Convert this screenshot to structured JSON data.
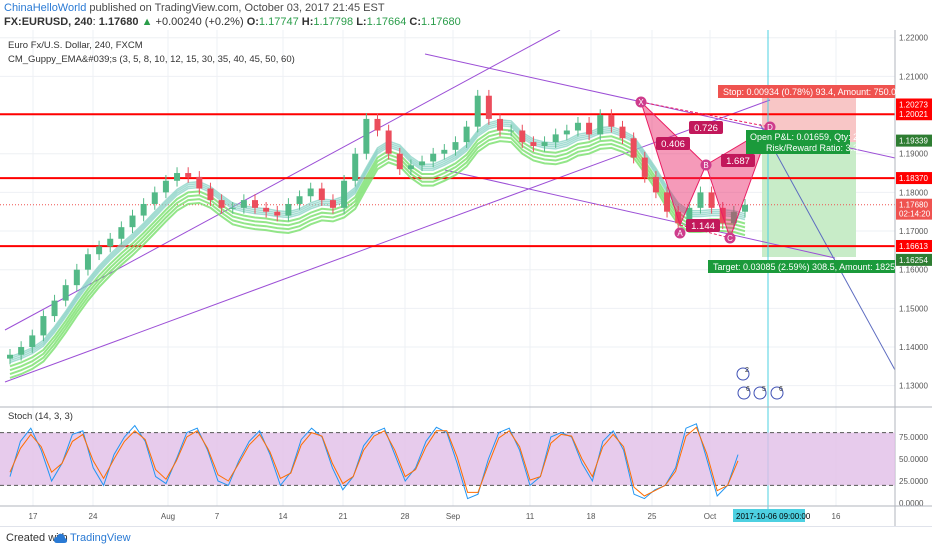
{
  "header": {
    "author": "ChinaHelloWorld",
    "published": "published on TradingView.com, October 03, 2017 21:45 EST",
    "symbol": "FX:EURUSD, 240",
    "last": "1.17680",
    "change": "+0.00240 (+0.2%)",
    "open_label": "O:",
    "open": "1.17747",
    "high_label": "H:",
    "high": "1.17798",
    "low_label": "L:",
    "low": "1.17664",
    "close_label": "C:",
    "close": "1.17680"
  },
  "legend": {
    "main": "Euro Fx/U.S. Dollar, 240, FXCM",
    "indicator": "CM_Guppy_EMA&#039;s (3, 5, 8, 10, 12, 15, 30, 35, 40, 45, 50, 60)",
    "stoch": "Stoch (14, 3, 3)"
  },
  "colors": {
    "up_candle": "#53b987",
    "down_candle": "#eb4d5c",
    "level_line": "#ff0000",
    "channel": "#9c4fd6",
    "ema_fast": "#3fbf8f",
    "ema_slow": "#78e06b",
    "pattern": "#e91e63",
    "stoch_bg": "#e1bee7",
    "stop_zone": "#f8c6c6",
    "target_zone": "#c8ecc8"
  },
  "position": {
    "stop": "Stop: 0.00934 (0.78%) 93.4, Amount: 750.0",
    "open_pl": "Open P&L: 0.01659, Qty: 26766",
    "rr": "Risk/Reward Ratio: 3.3",
    "target": "Target: 0.03085 (2.59%) 308.5, Amount: 1825"
  },
  "pattern": {
    "points": [
      "X",
      "A",
      "B",
      "C",
      "D"
    ],
    "ratios": [
      "0.726",
      "0.406",
      "1.687",
      "1.144"
    ]
  },
  "events": [
    "2",
    "6",
    "5",
    "6"
  ],
  "crosshair_time": "2017-10-06 09:00:00",
  "footer": {
    "created": "Created with",
    "brand": "TradingView"
  },
  "chart_data": [
    {
      "type": "candlestick",
      "title": "Euro Fx/U.S. Dollar, 240, FXCM",
      "ylim": [
        1.125,
        1.222
      ],
      "price_axis_ticks": [
        "1.22000",
        "1.21000",
        "1.20000",
        "1.19000",
        "1.18000",
        "1.17000",
        "1.16000",
        "1.15000",
        "1.14000",
        "1.13000"
      ],
      "price_labels": [
        {
          "text": "1.20273",
          "price": 1.20273,
          "color": "#ff0000"
        },
        {
          "text": "1.20021",
          "price": 1.20021,
          "color": "#ff0000"
        },
        {
          "text": "1.19339",
          "price": 1.19339,
          "color": "#2e7d32"
        },
        {
          "text": "1.18370",
          "price": 1.1837,
          "color": "#ff0000"
        },
        {
          "text": "1.17680",
          "price": 1.1768,
          "color": "#ef5350"
        },
        {
          "text": "02:14:20",
          "price": 1.1745,
          "color": "#ef5350"
        },
        {
          "text": "1.16613",
          "price": 1.16613,
          "color": "#ff0000"
        },
        {
          "text": "1.16254",
          "price": 1.16254,
          "color": "#2e7d32"
        }
      ],
      "horizontal_levels": [
        1.2002,
        1.1837,
        1.1661
      ],
      "time_axis_labels": [
        "17",
        "24",
        "Aug",
        "7",
        "14",
        "21",
        "28",
        "Sep",
        "11",
        "18",
        "25",
        "Oct",
        "16"
      ],
      "close_series": [
        1.138,
        1.14,
        1.143,
        1.148,
        1.152,
        1.156,
        1.16,
        1.164,
        1.166,
        1.168,
        1.171,
        1.174,
        1.177,
        1.18,
        1.183,
        1.185,
        1.184,
        1.181,
        1.178,
        1.176,
        1.176,
        1.178,
        1.176,
        1.175,
        1.174,
        1.177,
        1.179,
        1.181,
        1.178,
        1.176,
        1.183,
        1.19,
        1.199,
        1.196,
        1.19,
        1.186,
        1.187,
        1.188,
        1.19,
        1.191,
        1.193,
        1.197,
        1.205,
        1.199,
        1.196,
        1.196,
        1.193,
        1.192,
        1.193,
        1.195,
        1.196,
        1.198,
        1.195,
        1.2,
        1.197,
        1.194,
        1.189,
        1.184,
        1.18,
        1.175,
        1.172,
        1.176,
        1.18,
        1.176,
        1.172,
        1.175,
        1.1768
      ]
    },
    {
      "type": "line",
      "title": "Stoch (14, 3, 3)",
      "ylim": [
        0,
        100
      ],
      "axis_ticks": [
        "75.0000",
        "50.0000",
        "25.0000",
        "0.0000"
      ],
      "bands": [
        20,
        80
      ],
      "k_series": [
        30,
        70,
        85,
        60,
        25,
        45,
        78,
        82,
        40,
        20,
        55,
        75,
        88,
        70,
        30,
        22,
        50,
        80,
        85,
        60,
        25,
        20,
        48,
        70,
        82,
        55,
        20,
        35,
        72,
        85,
        75,
        40,
        15,
        30,
        65,
        80,
        85,
        55,
        25,
        40,
        70,
        86,
        80,
        45,
        5,
        10,
        50,
        80,
        85,
        60,
        20,
        30,
        75,
        80,
        75,
        45,
        25,
        70,
        82,
        60,
        10,
        5,
        15,
        20,
        40,
        85,
        90,
        50,
        8,
        20,
        55
      ],
      "d_series": [
        35,
        62,
        78,
        64,
        35,
        45,
        70,
        78,
        48,
        28,
        50,
        70,
        82,
        72,
        38,
        27,
        48,
        75,
        82,
        62,
        32,
        25,
        45,
        66,
        78,
        58,
        28,
        34,
        66,
        80,
        76,
        45,
        22,
        30,
        60,
        76,
        82,
        60,
        30,
        38,
        64,
        82,
        82,
        52,
        12,
        12,
        44,
        74,
        82,
        64,
        26,
        30,
        68,
        78,
        76,
        50,
        30,
        64,
        78,
        64,
        18,
        8,
        14,
        20,
        36,
        76,
        86,
        56,
        14,
        20,
        48
      ]
    }
  ]
}
